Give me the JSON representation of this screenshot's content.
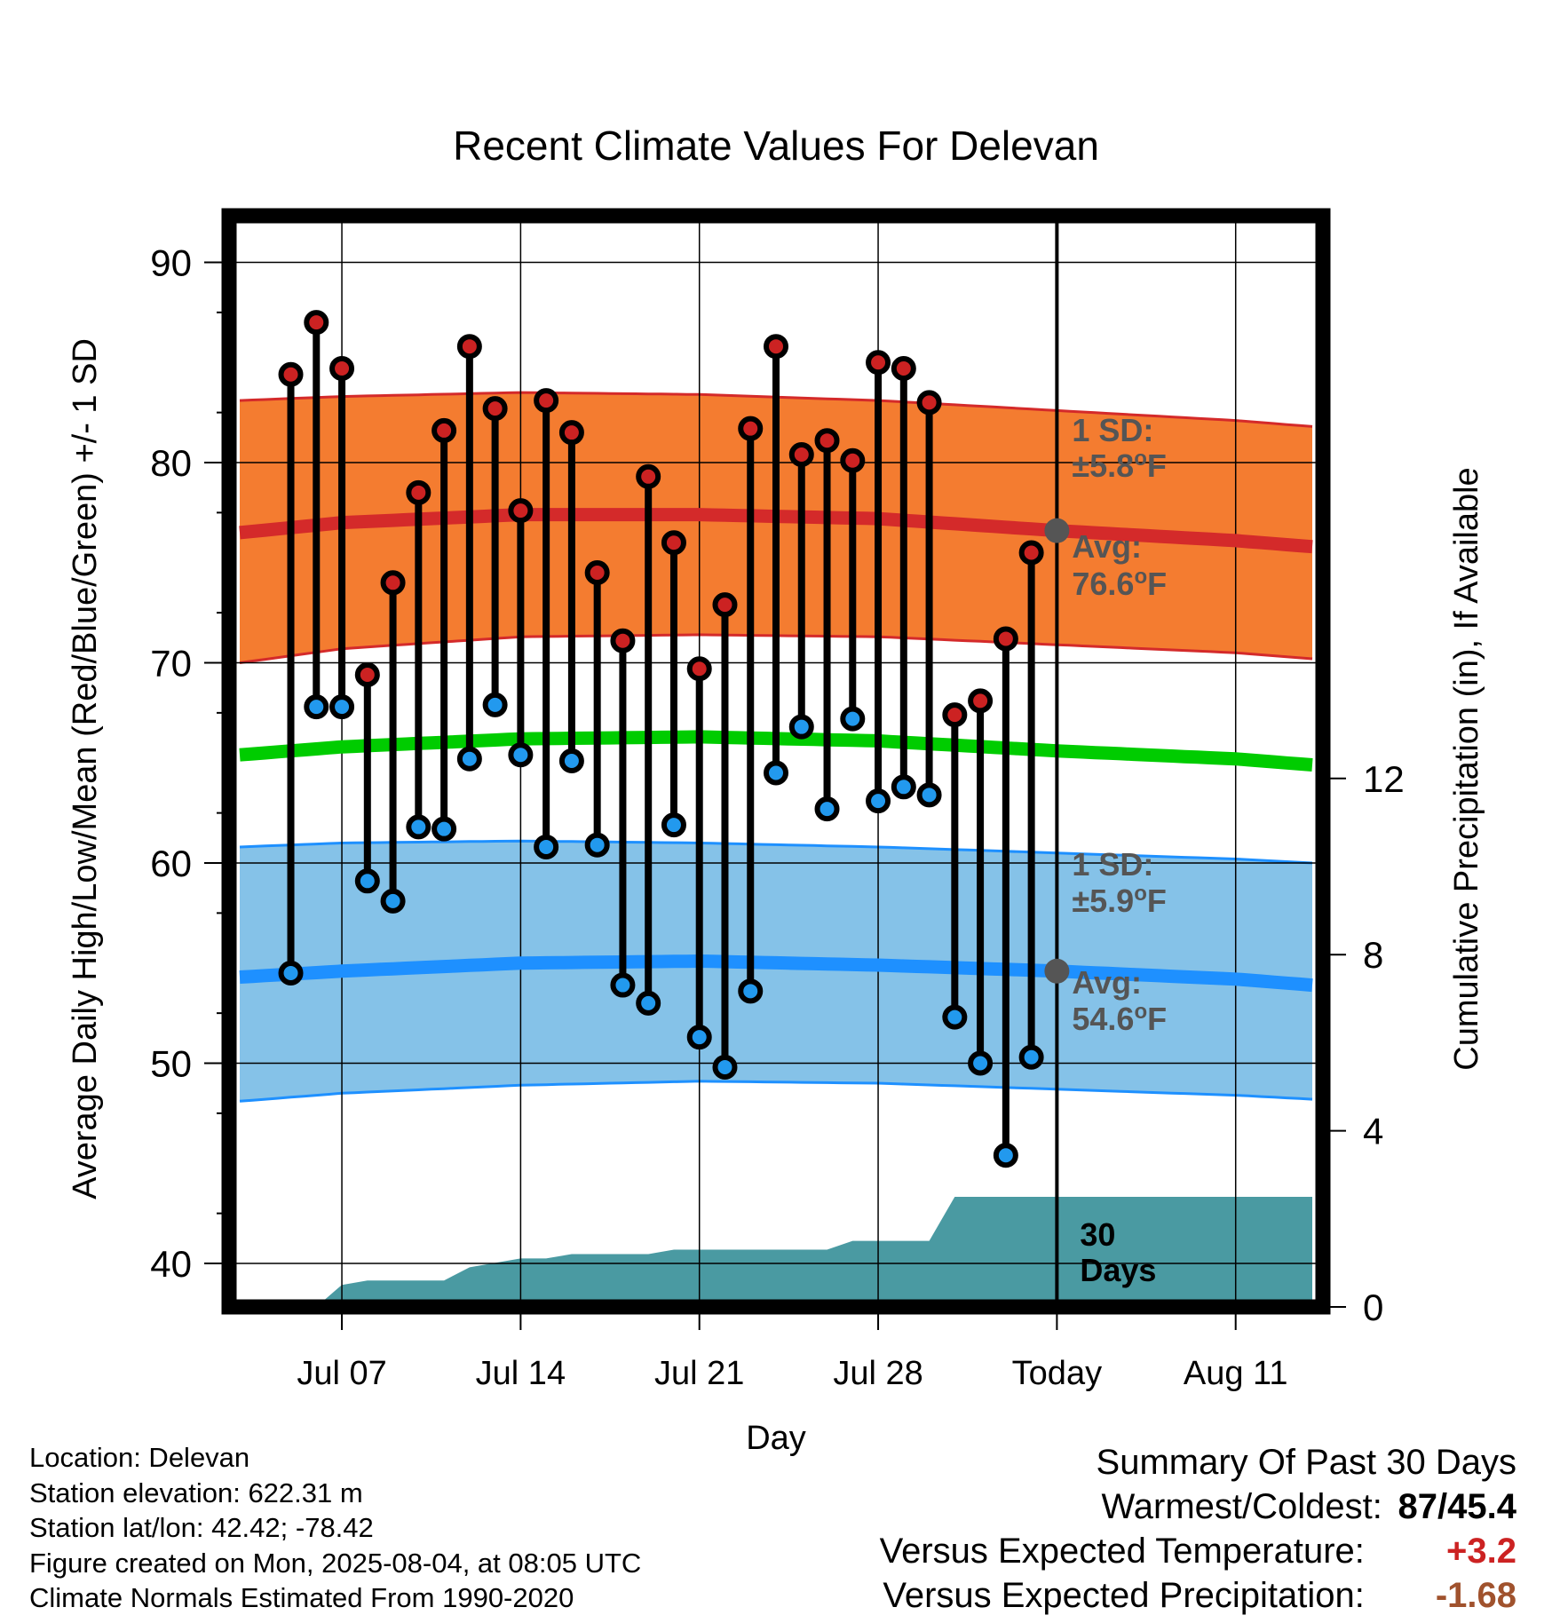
{
  "chart_data": {
    "type": "line",
    "title": "Recent Climate Values For Delevan",
    "xlabel": "Day",
    "ylabel": "Average Daily High/Low/Mean (Red/Blue/Green) +/- 1 SD",
    "y2label": "Cumulative Precipitation (in), If Available",
    "x_tick_labels": [
      "Jul 07",
      "Jul 14",
      "Jul 21",
      "Jul 28",
      "Today",
      "Aug 11"
    ],
    "x_tick_days": [
      7,
      14,
      21,
      28,
      35,
      42
    ],
    "today_day": 35,
    "xlim": [
      3,
      45
    ],
    "ylim": [
      38,
      92
    ],
    "yticks": [
      40,
      50,
      60,
      70,
      80,
      90
    ],
    "y2lim": [
      0,
      24
    ],
    "y2ticks": [
      0,
      4,
      8,
      12
    ],
    "days": [
      5,
      6,
      7,
      8,
      9,
      10,
      11,
      12,
      13,
      14,
      15,
      16,
      17,
      18,
      19,
      20,
      21,
      22,
      23,
      24,
      25,
      26,
      27,
      28,
      29,
      30,
      31,
      32,
      33,
      34
    ],
    "highs": [
      84.4,
      87.0,
      84.7,
      69.4,
      74.0,
      78.5,
      81.6,
      85.8,
      82.7,
      77.6,
      83.1,
      81.5,
      74.5,
      71.1,
      79.3,
      76.0,
      69.7,
      72.9,
      81.7,
      85.8,
      80.4,
      81.1,
      80.1,
      85.0,
      84.7,
      83.0,
      67.4,
      68.1,
      71.2,
      75.5
    ],
    "lows": [
      54.5,
      67.8,
      67.8,
      59.1,
      58.1,
      61.8,
      61.7,
      65.2,
      67.9,
      65.4,
      60.8,
      65.1,
      60.9,
      53.9,
      53.0,
      61.9,
      51.3,
      49.8,
      53.6,
      64.5,
      66.8,
      62.7,
      67.2,
      63.1,
      63.8,
      63.4,
      52.3,
      50.0,
      45.4,
      50.3
    ],
    "normal_days": [
      3,
      7,
      14,
      21,
      28,
      35,
      42,
      45
    ],
    "normal_high": [
      76.5,
      77.0,
      77.4,
      77.4,
      77.2,
      76.6,
      76.1,
      75.8
    ],
    "normal_high_upper": [
      83.1,
      83.3,
      83.5,
      83.4,
      83.1,
      82.6,
      82.1,
      81.8
    ],
    "normal_high_lower": [
      70.0,
      70.7,
      71.3,
      71.4,
      71.3,
      70.9,
      70.5,
      70.2
    ],
    "normal_mean": [
      65.4,
      65.8,
      66.2,
      66.3,
      66.1,
      65.6,
      65.2,
      64.9
    ],
    "normal_low": [
      54.3,
      54.6,
      55.0,
      55.1,
      54.9,
      54.6,
      54.2,
      53.9
    ],
    "normal_low_upper": [
      60.8,
      61.0,
      61.1,
      61.0,
      60.8,
      60.5,
      60.2,
      60.0
    ],
    "normal_low_lower": [
      48.1,
      48.5,
      48.9,
      49.1,
      49.0,
      48.7,
      48.4,
      48.2
    ],
    "precip_days": [
      6,
      7,
      8,
      9,
      10,
      11,
      12,
      13,
      14,
      15,
      16,
      17,
      18,
      19,
      20,
      21,
      22,
      23,
      24,
      25,
      26,
      27,
      28,
      29,
      30,
      31,
      32,
      33,
      34,
      35,
      45
    ],
    "precip_cum": [
      0.0,
      0.5,
      0.6,
      0.6,
      0.6,
      0.6,
      0.9,
      1.0,
      1.1,
      1.1,
      1.2,
      1.2,
      1.2,
      1.2,
      1.3,
      1.3,
      1.3,
      1.3,
      1.3,
      1.3,
      1.3,
      1.5,
      1.5,
      1.5,
      1.5,
      2.5,
      2.5,
      2.5,
      2.5,
      2.5,
      2.5
    ],
    "annotations": {
      "high_sd_label": "1 SD:",
      "high_sd_value": "±5.8°F",
      "high_avg_label": "Avg:",
      "high_avg_value": "76.6°F",
      "low_sd_label": "1 SD:",
      "low_sd_value": "±5.9°F",
      "low_avg_label": "Avg:",
      "low_avg_value": "54.6°F",
      "precip_label_1": "30",
      "precip_label_2": "Days"
    },
    "colors": {
      "high_band": "#f47c30",
      "high_line": "#d42a2a",
      "mean_line": "#00cc00",
      "low_band": "#85c2e8",
      "low_line": "#1e90ff",
      "high_dot": "#cc2222",
      "low_dot": "#2299ee",
      "precip_fill": "#4a9aa2",
      "normal_dot": "#555555",
      "annotation_text": "#555555"
    },
    "grid": true
  },
  "footer": {
    "location": "Location: Delevan",
    "elevation": "Station elevation: 622.31 m",
    "latlon": "Station lat/lon: 42.42; -78.42",
    "created": "Figure created on Mon, 2025-08-04, at 08:05 UTC",
    "normals": "Climate Normals Estimated From 1990-2020"
  },
  "summary": {
    "title": "Summary Of Past 30 Days",
    "warmest_coldest_label": "Warmest/Coldest:",
    "warmest_coldest_high": "87",
    "warmest_coldest_low": "/45.4",
    "temp_label": "Versus Expected Temperature:",
    "temp_value": "+3.2",
    "temp_color": "#cc2222",
    "precip_label": "Versus Expected Precipitation:",
    "precip_value": "-1.68",
    "precip_color": "#a0522d"
  }
}
